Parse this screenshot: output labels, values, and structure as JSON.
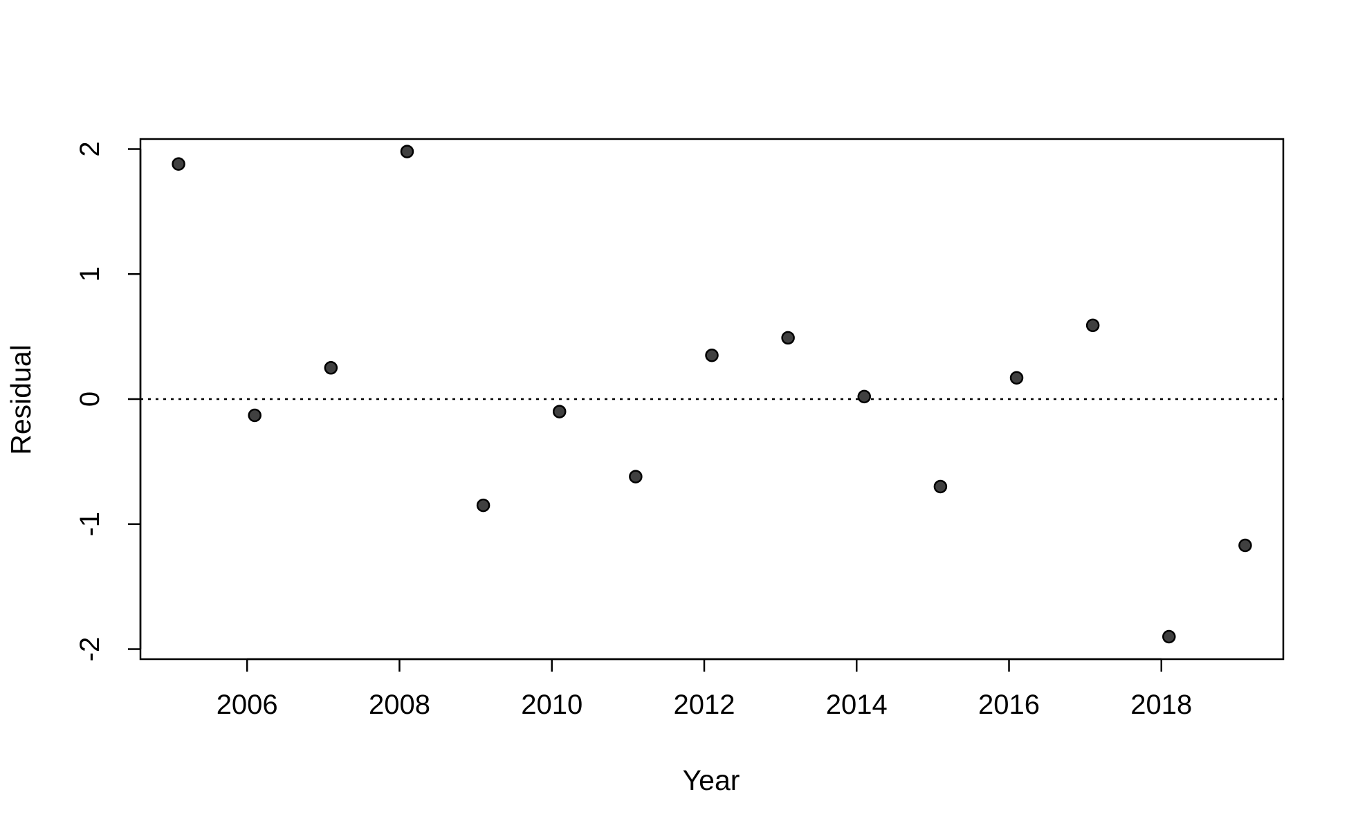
{
  "chart_data": {
    "type": "scatter",
    "title": "",
    "xlabel": "Year",
    "ylabel": "Residual",
    "xlim": [
      2004.6,
      2019.6
    ],
    "ylim": [
      -2.08,
      2.08
    ],
    "x_ticks": [
      2006,
      2008,
      2010,
      2012,
      2014,
      2016,
      2018
    ],
    "y_ticks": [
      -2,
      -1,
      0,
      1,
      2
    ],
    "x_tick_labels": [
      "2006",
      "2008",
      "2010",
      "2012",
      "2014",
      "2016",
      "2018"
    ],
    "y_tick_labels": [
      "-2",
      "-1",
      "0",
      "1",
      "2"
    ],
    "reference_line": {
      "y": 0,
      "style": "dotted"
    },
    "grid": false,
    "point_color": "#404040",
    "series": [
      {
        "x": [
          2005.1,
          2006.1,
          2007.1,
          2008.1,
          2009.1,
          2010.1,
          2011.1,
          2012.1,
          2013.1,
          2014.1,
          2015.1,
          2016.1,
          2017.1,
          2018.1,
          2019.1
        ],
        "y": [
          1.88,
          -0.13,
          0.25,
          1.98,
          -0.85,
          -0.1,
          -0.62,
          0.35,
          0.49,
          0.02,
          -0.7,
          0.17,
          0.59,
          -1.9,
          -1.17
        ]
      }
    ]
  }
}
